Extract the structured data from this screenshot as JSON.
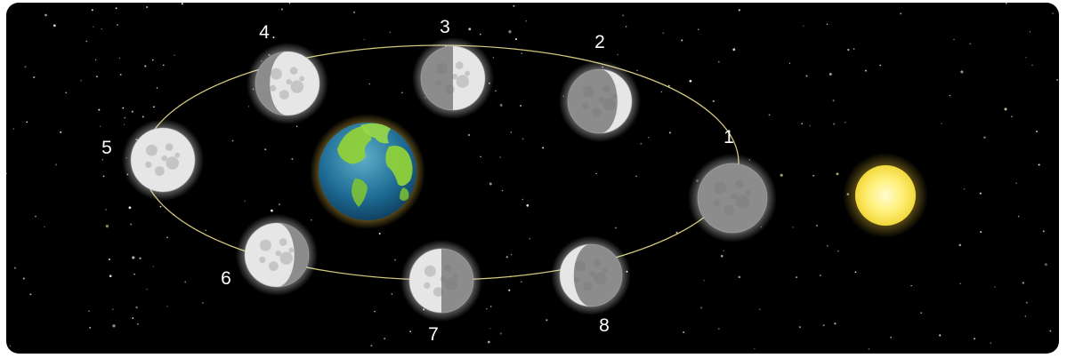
{
  "phases": [
    {
      "number": "1"
    },
    {
      "number": "2"
    },
    {
      "number": "3"
    },
    {
      "number": "4"
    },
    {
      "number": "5"
    },
    {
      "number": "6"
    },
    {
      "number": "7"
    },
    {
      "number": "8"
    }
  ],
  "colors": {
    "background": "#000000",
    "orbit": "#e8dc8a",
    "moon_lit": "#e6e6e6",
    "moon_dark": "#8c8c8c",
    "sun": "#fff27a",
    "earth_ocean": "#1e5f8c",
    "earth_land": "#8fd03a"
  },
  "icons": {
    "earth": "earth-icon",
    "sun": "sun-icon",
    "moon": "moon-icon"
  }
}
